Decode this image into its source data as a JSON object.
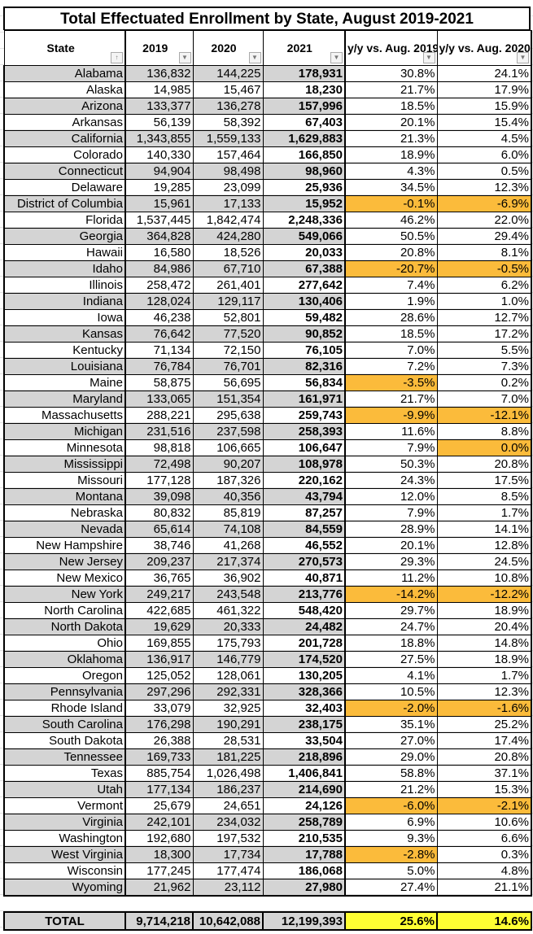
{
  "title": "Total Effectuated Enrollment by State, August 2019-2021",
  "columns": [
    "State",
    "2019",
    "2020",
    "2021",
    "y/y vs. Aug. 2019",
    "y/y vs. Aug. 2020"
  ],
  "colors": {
    "shade": "#d4d4d4",
    "negative_highlight": "#fbbb3b",
    "total_highlight": "#ffff33"
  },
  "rows": [
    [
      "Alabama",
      "136,832",
      "144,225",
      "178,931",
      "30.8%",
      "24.1%"
    ],
    [
      "Alaska",
      "14,985",
      "15,467",
      "18,230",
      "21.7%",
      "17.9%"
    ],
    [
      "Arizona",
      "133,377",
      "136,278",
      "157,996",
      "18.5%",
      "15.9%"
    ],
    [
      "Arkansas",
      "56,139",
      "58,392",
      "67,403",
      "20.1%",
      "15.4%"
    ],
    [
      "California",
      "1,343,855",
      "1,559,133",
      "1,629,883",
      "21.3%",
      "4.5%"
    ],
    [
      "Colorado",
      "140,330",
      "157,464",
      "166,850",
      "18.9%",
      "6.0%"
    ],
    [
      "Connecticut",
      "94,904",
      "98,498",
      "98,960",
      "4.3%",
      "0.5%"
    ],
    [
      "Delaware",
      "19,285",
      "23,099",
      "25,936",
      "34.5%",
      "12.3%"
    ],
    [
      "District of Columbia",
      "15,961",
      "17,133",
      "15,952",
      "-0.1%",
      "-6.9%"
    ],
    [
      "Florida",
      "1,537,445",
      "1,842,474",
      "2,248,336",
      "46.2%",
      "22.0%"
    ],
    [
      "Georgia",
      "364,828",
      "424,280",
      "549,066",
      "50.5%",
      "29.4%"
    ],
    [
      "Hawaii",
      "16,580",
      "18,526",
      "20,033",
      "20.8%",
      "8.1%"
    ],
    [
      "Idaho",
      "84,986",
      "67,710",
      "67,388",
      "-20.7%",
      "-0.5%"
    ],
    [
      "Illinois",
      "258,472",
      "261,401",
      "277,642",
      "7.4%",
      "6.2%"
    ],
    [
      "Indiana",
      "128,024",
      "129,117",
      "130,406",
      "1.9%",
      "1.0%"
    ],
    [
      "Iowa",
      "46,238",
      "52,801",
      "59,482",
      "28.6%",
      "12.7%"
    ],
    [
      "Kansas",
      "76,642",
      "77,520",
      "90,852",
      "18.5%",
      "17.2%"
    ],
    [
      "Kentucky",
      "71,134",
      "72,150",
      "76,105",
      "7.0%",
      "5.5%"
    ],
    [
      "Louisiana",
      "76,784",
      "76,701",
      "82,316",
      "7.2%",
      "7.3%"
    ],
    [
      "Maine",
      "58,875",
      "56,695",
      "56,834",
      "-3.5%",
      "0.2%"
    ],
    [
      "Maryland",
      "133,065",
      "151,354",
      "161,971",
      "21.7%",
      "7.0%"
    ],
    [
      "Massachusetts",
      "288,221",
      "295,638",
      "259,743",
      "-9.9%",
      "-12.1%"
    ],
    [
      "Michigan",
      "231,516",
      "237,598",
      "258,393",
      "11.6%",
      "8.8%"
    ],
    [
      "Minnesota",
      "98,818",
      "106,665",
      "106,647",
      "7.9%",
      "0.0%"
    ],
    [
      "Mississippi",
      "72,498",
      "90,207",
      "108,978",
      "50.3%",
      "20.8%"
    ],
    [
      "Missouri",
      "177,128",
      "187,326",
      "220,162",
      "24.3%",
      "17.5%"
    ],
    [
      "Montana",
      "39,098",
      "40,356",
      "43,794",
      "12.0%",
      "8.5%"
    ],
    [
      "Nebraska",
      "80,832",
      "85,819",
      "87,257",
      "7.9%",
      "1.7%"
    ],
    [
      "Nevada",
      "65,614",
      "74,108",
      "84,559",
      "28.9%",
      "14.1%"
    ],
    [
      "New Hampshire",
      "38,746",
      "41,268",
      "46,552",
      "20.1%",
      "12.8%"
    ],
    [
      "New Jersey",
      "209,237",
      "217,374",
      "270,573",
      "29.3%",
      "24.5%"
    ],
    [
      "New Mexico",
      "36,765",
      "36,902",
      "40,871",
      "11.2%",
      "10.8%"
    ],
    [
      "New York",
      "249,217",
      "243,548",
      "213,776",
      "-14.2%",
      "-12.2%"
    ],
    [
      "North Carolina",
      "422,685",
      "461,322",
      "548,420",
      "29.7%",
      "18.9%"
    ],
    [
      "North Dakota",
      "19,629",
      "20,333",
      "24,482",
      "24.7%",
      "20.4%"
    ],
    [
      "Ohio",
      "169,855",
      "175,793",
      "201,728",
      "18.8%",
      "14.8%"
    ],
    [
      "Oklahoma",
      "136,917",
      "146,779",
      "174,520",
      "27.5%",
      "18.9%"
    ],
    [
      "Oregon",
      "125,052",
      "128,061",
      "130,205",
      "4.1%",
      "1.7%"
    ],
    [
      "Pennsylvania",
      "297,296",
      "292,331",
      "328,366",
      "10.5%",
      "12.3%"
    ],
    [
      "Rhode Island",
      "33,079",
      "32,925",
      "32,403",
      "-2.0%",
      "-1.6%"
    ],
    [
      "South Carolina",
      "176,298",
      "190,291",
      "238,175",
      "35.1%",
      "25.2%"
    ],
    [
      "South Dakota",
      "26,388",
      "28,531",
      "33,504",
      "27.0%",
      "17.4%"
    ],
    [
      "Tennessee",
      "169,733",
      "181,225",
      "218,896",
      "29.0%",
      "20.8%"
    ],
    [
      "Texas",
      "885,754",
      "1,026,498",
      "1,406,841",
      "58.8%",
      "37.1%"
    ],
    [
      "Utah",
      "177,134",
      "186,237",
      "214,690",
      "21.2%",
      "15.3%"
    ],
    [
      "Vermont",
      "25,679",
      "24,651",
      "24,126",
      "-6.0%",
      "-2.1%"
    ],
    [
      "Virginia",
      "242,101",
      "234,032",
      "258,789",
      "6.9%",
      "10.6%"
    ],
    [
      "Washington",
      "192,680",
      "197,532",
      "210,535",
      "9.3%",
      "6.6%"
    ],
    [
      "West Virginia",
      "18,300",
      "17,734",
      "17,788",
      "-2.8%",
      "0.3%"
    ],
    [
      "Wisconsin",
      "177,245",
      "177,474",
      "186,068",
      "5.0%",
      "4.8%"
    ],
    [
      "Wyoming",
      "21,962",
      "23,112",
      "27,980",
      "27.4%",
      "21.1%"
    ]
  ],
  "highlighted": {
    "District of Columbia": [
      true,
      true
    ],
    "Idaho": [
      true,
      true
    ],
    "Maine": [
      true,
      false
    ],
    "Massachusetts": [
      true,
      true
    ],
    "Minnesota": [
      false,
      true
    ],
    "New York": [
      true,
      true
    ],
    "Rhode Island": [
      true,
      true
    ],
    "Vermont": [
      true,
      true
    ],
    "West Virginia": [
      true,
      false
    ]
  },
  "total": [
    "TOTAL",
    "9,714,218",
    "10,642,088",
    "12,199,393",
    "25.6%",
    "14.6%"
  ]
}
